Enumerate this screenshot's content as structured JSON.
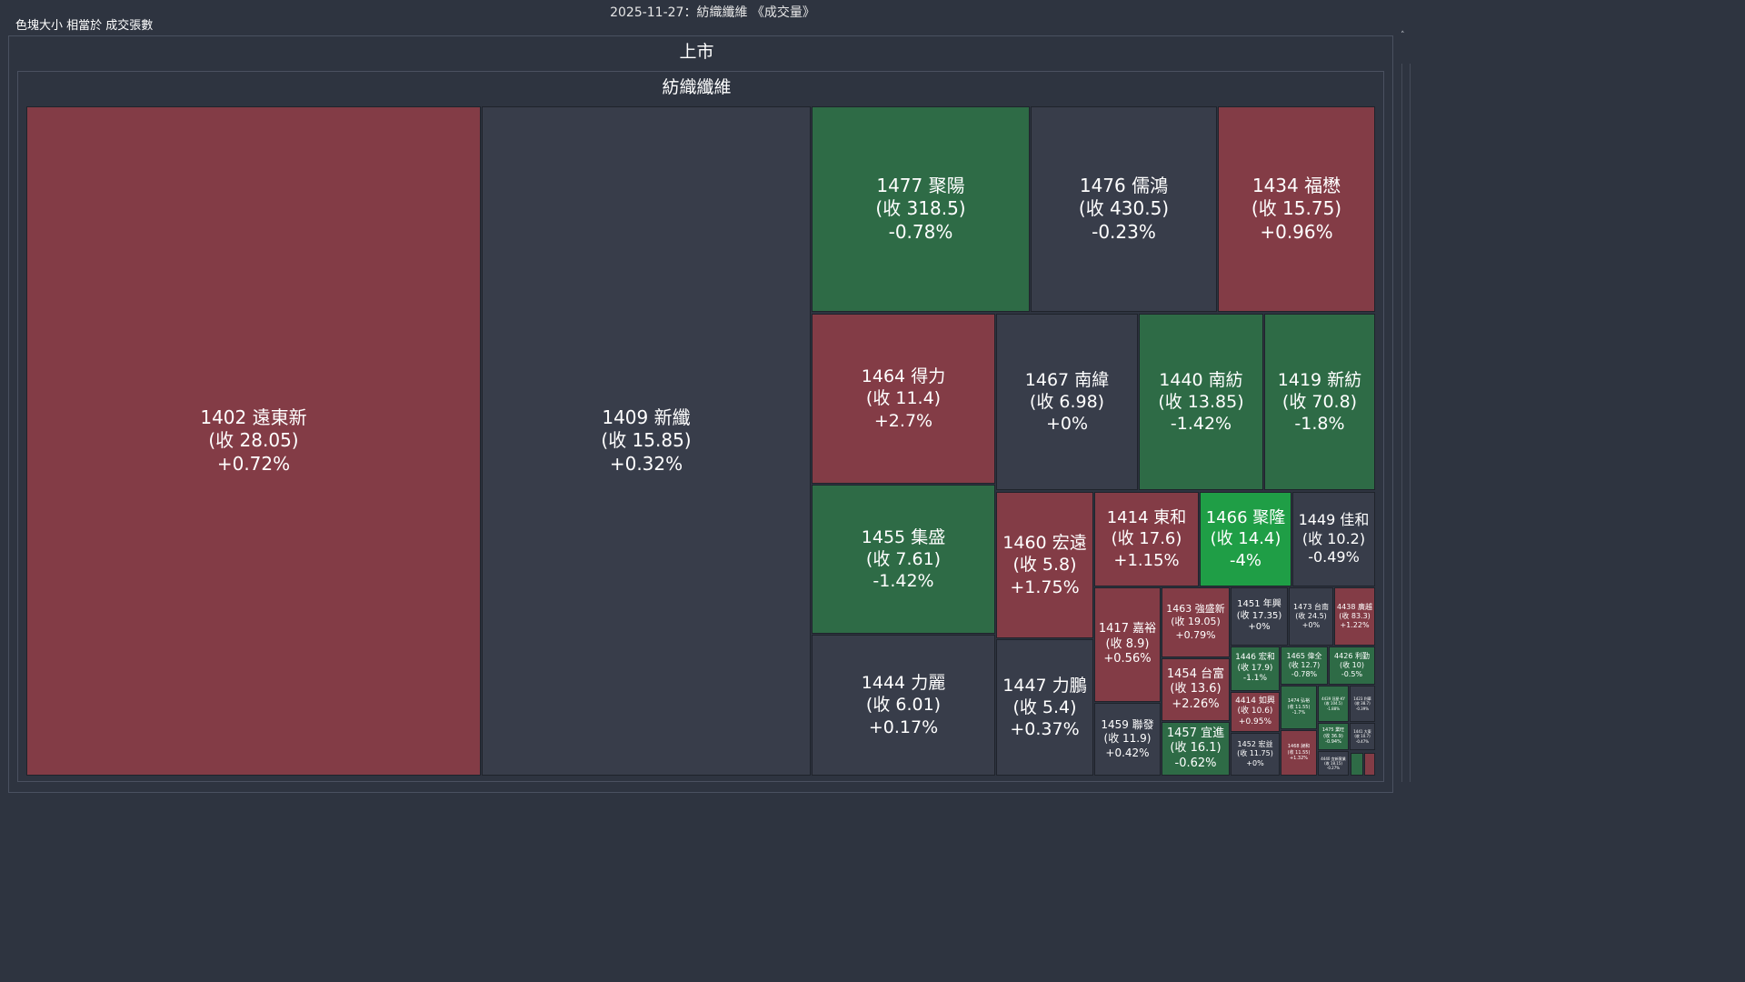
{
  "header": {
    "title": "2025-11-27：紡織纖維 《成交量》",
    "legend_note": "色塊大小 相當於 成交張數"
  },
  "groups": {
    "market_label": "上市",
    "sector_label": "紡織纖維"
  },
  "colors": {
    "up": "#833c46",
    "flat": "#383d4a",
    "down": "#2e6b46",
    "limit_down": "#1f9e46",
    "background": "#2e3440"
  },
  "chart_data": {
    "type": "treemap",
    "title": "2025-11-27：紡織纖維 《成交量》",
    "size_metric": "色塊大小 相當於 成交張數",
    "groups": [
      "上市",
      "紡織纖維"
    ],
    "tiles": [
      {
        "id": "1402",
        "name": "遠東新",
        "close": "28.05",
        "change": "+0.72%",
        "color": "up",
        "label": "1402 遠東新",
        "close_label": "(收 28.05)"
      },
      {
        "id": "1409",
        "name": "新纖",
        "close": "15.85",
        "change": "+0.32%",
        "color": "flat",
        "label": "1409 新纖",
        "close_label": "(收 15.85)"
      },
      {
        "id": "1477",
        "name": "聚陽",
        "close": "318.5",
        "change": "-0.78%",
        "color": "down",
        "label": "1477 聚陽",
        "close_label": "(收 318.5)"
      },
      {
        "id": "1476",
        "name": "儒鴻",
        "close": "430.5",
        "change": "-0.23%",
        "color": "flat",
        "label": "1476 儒鴻",
        "close_label": "(收 430.5)"
      },
      {
        "id": "1434",
        "name": "福懋",
        "close": "15.75",
        "change": "+0.96%",
        "color": "up",
        "label": "1434 福懋",
        "close_label": "(收 15.75)"
      },
      {
        "id": "1464",
        "name": "得力",
        "close": "11.4",
        "change": "+2.7%",
        "color": "up",
        "label": "1464 得力",
        "close_label": "(收 11.4)"
      },
      {
        "id": "1467",
        "name": "南緯",
        "close": "6.98",
        "change": "+0%",
        "color": "flat",
        "label": "1467 南緯",
        "close_label": "(收 6.98)"
      },
      {
        "id": "1440",
        "name": "南紡",
        "close": "13.85",
        "change": "-1.42%",
        "color": "down",
        "label": "1440 南紡",
        "close_label": "(收 13.85)"
      },
      {
        "id": "1419",
        "name": "新紡",
        "close": "70.8",
        "change": "-1.8%",
        "color": "down",
        "label": "1419 新紡",
        "close_label": "(收 70.8)"
      },
      {
        "id": "1455",
        "name": "集盛",
        "close": "7.61",
        "change": "-1.42%",
        "color": "down",
        "label": "1455 集盛",
        "close_label": "(收 7.61)"
      },
      {
        "id": "1460",
        "name": "宏遠",
        "close": "5.8",
        "change": "+1.75%",
        "color": "up",
        "label": "1460 宏遠",
        "close_label": "(收 5.8)"
      },
      {
        "id": "1414",
        "name": "東和",
        "close": "17.6",
        "change": "+1.15%",
        "color": "up",
        "label": "1414 東和",
        "close_label": "(收 17.6)"
      },
      {
        "id": "1466",
        "name": "聚隆",
        "close": "14.4",
        "change": "-4%",
        "color": "limit_down",
        "label": "1466 聚隆",
        "close_label": "(收 14.4)"
      },
      {
        "id": "1449",
        "name": "佳和",
        "close": "10.2",
        "change": "-0.49%",
        "color": "flat",
        "label": "1449 佳和",
        "close_label": "(收 10.2)"
      },
      {
        "id": "1444",
        "name": "力麗",
        "close": "6.01",
        "change": "+0.17%",
        "color": "flat",
        "label": "1444 力麗",
        "close_label": "(收 6.01)"
      },
      {
        "id": "1447",
        "name": "力鵬",
        "close": "5.4",
        "change": "+0.37%",
        "color": "flat",
        "label": "1447 力鵬",
        "close_label": "(收 5.4)"
      },
      {
        "id": "1417",
        "name": "嘉裕",
        "close": "8.9",
        "change": "+0.56%",
        "color": "up",
        "label": "1417 嘉裕",
        "close_label": "(收 8.9)"
      },
      {
        "id": "1463",
        "name": "強盛新",
        "close": "19.05",
        "change": "+0.79%",
        "color": "up",
        "label": "1463 強盛新",
        "close_label": "(收 19.05)"
      },
      {
        "id": "1451",
        "name": "年興",
        "close": "17.35",
        "change": "+0%",
        "color": "flat",
        "label": "1451 年興",
        "close_label": "(收 17.35)"
      },
      {
        "id": "1473",
        "name": "台南",
        "close": "24.5",
        "change": "+0%",
        "color": "flat",
        "label": "1473 台南",
        "close_label": "(收 24.5)"
      },
      {
        "id": "4438",
        "name": "廣越",
        "close": "83.3",
        "change": "+1.22%",
        "color": "up",
        "label": "4438 廣越",
        "close_label": "(收 83.3)"
      },
      {
        "id": "1454",
        "name": "台富",
        "close": "13.6",
        "change": "+2.26%",
        "color": "up",
        "label": "1454 台富",
        "close_label": "(收 13.6)"
      },
      {
        "id": "1446",
        "name": "宏和",
        "close": "17.9",
        "change": "-1.1%",
        "color": "down",
        "label": "1446 宏和",
        "close_label": "(收 17.9)"
      },
      {
        "id": "1465",
        "name": "偉全",
        "close": "12.7",
        "change": "-0.78%",
        "color": "down",
        "label": "1465 偉全",
        "close_label": "(收 12.7)"
      },
      {
        "id": "4426",
        "name": "利勤",
        "close": "10",
        "change": "-0.5%",
        "color": "down",
        "label": "4426 利勤",
        "close_label": "(收 10)"
      },
      {
        "id": "1459",
        "name": "聯發",
        "close": "11.9",
        "change": "+0.42%",
        "color": "flat",
        "label": "1459 聯發",
        "close_label": "(收 11.9)"
      },
      {
        "id": "1457",
        "name": "宜進",
        "close": "16.1",
        "change": "-0.62%",
        "color": "down",
        "label": "1457 宜進",
        "close_label": "(收 16.1)"
      },
      {
        "id": "4414",
        "name": "如興",
        "close": "10.6",
        "change": "+0.95%",
        "color": "up",
        "label": "4414 如興",
        "close_label": "(收 10.6)"
      },
      {
        "id": "1452",
        "name": "宏益",
        "close": "11.75",
        "change": "+0%",
        "color": "flat",
        "label": "1452 宏益",
        "close_label": "(收 11.75)"
      },
      {
        "id": "1474",
        "name": "弘裕",
        "close": "11.55",
        "change": "-1.7%",
        "color": "down",
        "label": "1474 弘裕",
        "close_label": "(收 11.55)"
      },
      {
        "id": "4439",
        "name": "冠星-KY",
        "close": "104.5",
        "change": "-1.88%",
        "color": "down",
        "label": "4439 冠星-KY",
        "close_label": "(收 104.5)"
      },
      {
        "id": "1423",
        "name": "利華",
        "close": "38.7",
        "change": "-0.39%",
        "color": "flat",
        "label": "1423 利華",
        "close_label": "(收 38.7)"
      },
      {
        "id": "1475",
        "name": "業旺",
        "close": "36.9",
        "change": "-0.94%",
        "color": "down",
        "label": "1475 業旺",
        "close_label": "(收 36.9)"
      },
      {
        "id": "1441",
        "name": "大東",
        "close": "10.7",
        "change": "-0.47%",
        "color": "flat",
        "label": "1441 大東",
        "close_label": "(收 10.7)"
      },
      {
        "id": "1468",
        "name": "昶和",
        "close": "11.55",
        "change": "+1.32%",
        "color": "up",
        "label": "1468 昶和",
        "close_label": "(收 11.55)"
      },
      {
        "id": "4440",
        "name": "宜新實業",
        "close": "18.15",
        "change": "-0.27%",
        "color": "flat",
        "label": "4440 宜新實業",
        "close_label": "(收 18.15)"
      },
      {
        "id": "tiny-1",
        "name": "",
        "close": "",
        "change": "",
        "color": "down",
        "label": "",
        "close_label": ""
      },
      {
        "id": "tiny-2",
        "name": "",
        "close": "",
        "change": "",
        "color": "up",
        "label": "",
        "close_label": ""
      }
    ]
  }
}
